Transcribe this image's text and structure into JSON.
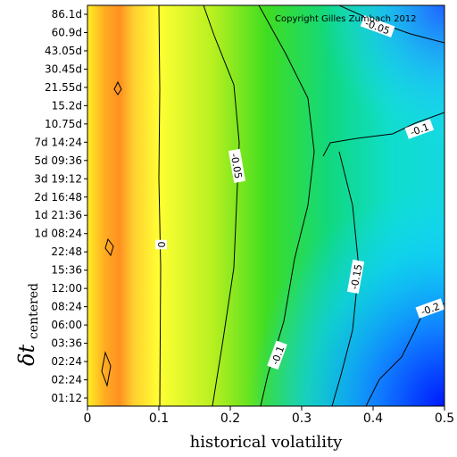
{
  "chart_data": {
    "type": "heatmap",
    "xlabel": "historical volatility",
    "ylabel_main": "δt",
    "ylabel_sub": "centered",
    "xlim": [
      0,
      0.5
    ],
    "x_ticks": [
      "0",
      "0.1",
      "0.2",
      "0.3",
      "0.4",
      "0.5"
    ],
    "y_ticks": [
      "01:12",
      "02:24",
      "02:24",
      "03:36",
      "06:00",
      "08:24",
      "12:00",
      "15:36",
      "22:48",
      "1d 08:24",
      "1d 21:36",
      "2d 16:48",
      "3d 19:12",
      "5d 09:36",
      "7d 14:24",
      "10.75d",
      "15.2d",
      "21.55d",
      "30.45d",
      "43.05d",
      "60.9d",
      "86.1d"
    ],
    "copyright": "Copyright Gilles Zumbach 2012",
    "contour_levels": [
      "0",
      "-0.05",
      "-0.1",
      "-0.1",
      "-0.15",
      "-0.2",
      "-0.05"
    ],
    "colormap": [
      "#ff8c00",
      "#ffff00",
      "#00dd00",
      "#00ffff",
      "#0000ff"
    ],
    "surface_estimate": {
      "x": [
        0.0,
        0.03,
        0.06,
        0.1,
        0.15,
        0.2,
        0.25,
        0.3,
        0.35,
        0.4,
        0.45,
        0.5
      ],
      "values_low_dt": [
        0.05,
        0.07,
        0.04,
        0.0,
        -0.04,
        -0.07,
        -0.1,
        -0.13,
        -0.16,
        -0.19,
        -0.22,
        -0.26
      ],
      "values_high_dt": [
        0.05,
        0.07,
        0.04,
        0.0,
        -0.03,
        -0.05,
        -0.06,
        -0.07,
        -0.08,
        -0.09,
        -0.1,
        -0.12
      ]
    }
  }
}
